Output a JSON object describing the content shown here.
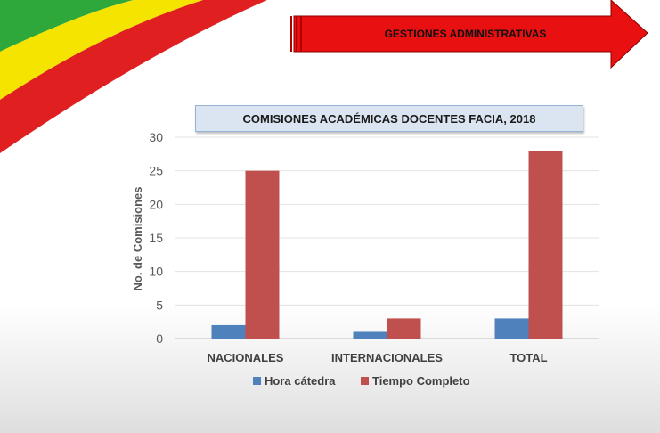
{
  "header": {
    "banner_label": "GESTIONES ADMINISTRATIVAS"
  },
  "colors": {
    "flag_green": "#2ea83a",
    "flag_yellow": "#f5e400",
    "flag_red": "#e02020",
    "banner_red": "#e81010"
  },
  "chart_data": {
    "type": "bar",
    "title": "COMISIONES ACADÉMICAS DOCENTES FACIA, 2018",
    "ylabel": "No. de Comisiones",
    "xlabel": "",
    "categories": [
      "NACIONALES",
      "INTERNACIONALES",
      "TOTAL"
    ],
    "series": [
      {
        "name": "Hora cátedra",
        "color": "#4f81bd",
        "values": [
          2,
          1,
          3
        ]
      },
      {
        "name": "Tiempo Completo",
        "color": "#c0504d",
        "values": [
          25,
          3,
          28
        ]
      }
    ],
    "ylim": [
      0,
      30
    ],
    "yticks": [
      0,
      5,
      10,
      15,
      20,
      25,
      30
    ],
    "yticks_labels": [
      "0",
      "5",
      "10",
      "15",
      "20",
      "25",
      "30"
    ],
    "grid": true,
    "legend": "bottom"
  }
}
